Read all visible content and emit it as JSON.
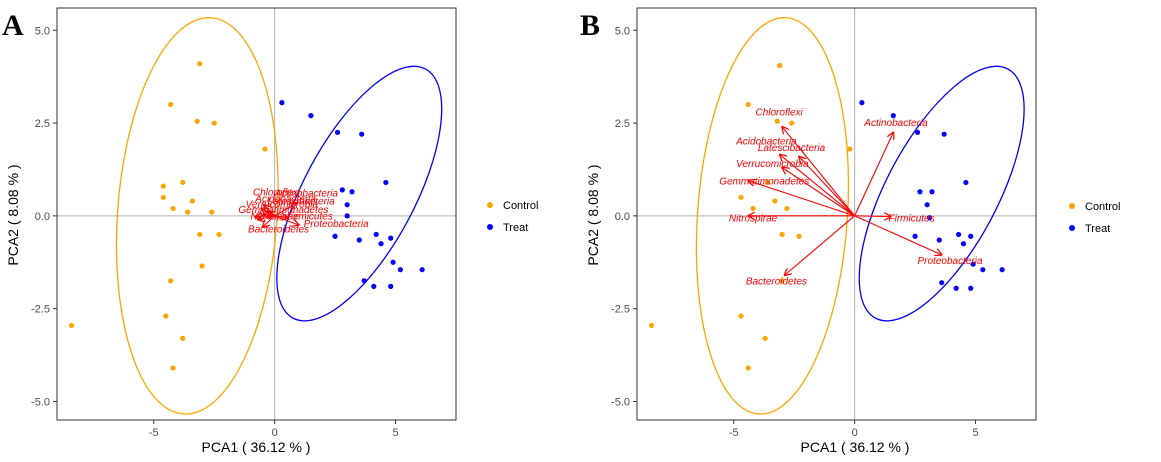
{
  "colors": {
    "control": "#FFA500",
    "treat": "#0000FF",
    "vector": "#FF0000",
    "refline": "#B3B3B3",
    "frame": "#333333"
  },
  "legend": {
    "items": [
      "Control",
      "Treat"
    ],
    "placement": "right"
  },
  "chart_data": [
    {
      "panel": "A",
      "type": "scatter",
      "xlabel": "PCA1 ( 36.12 % )",
      "ylabel": "PCA2 ( 8.08 % )",
      "xlim": [
        -9.0,
        7.5
      ],
      "ylim": [
        -5.5,
        5.6
      ],
      "xticks": [
        -5,
        0,
        5
      ],
      "xtick_labels": [
        "-5",
        "0",
        "5"
      ],
      "yticks": [
        -5,
        -2.5,
        0,
        2.5,
        5
      ],
      "ytick_labels": [
        "-5.0",
        "-2.5",
        "0.0",
        "2.5",
        "5.0"
      ],
      "series": [
        {
          "name": "Control",
          "points": [
            [
              -8.4,
              -2.95
            ],
            [
              -4.5,
              -2.7
            ],
            [
              -4.2,
              -4.1
            ],
            [
              -3.8,
              -3.3
            ],
            [
              -4.3,
              -1.75
            ],
            [
              -3.0,
              -1.35
            ],
            [
              -3.1,
              -0.5
            ],
            [
              -2.3,
              -0.5
            ],
            [
              -4.6,
              0.5
            ],
            [
              -4.2,
              0.2
            ],
            [
              -4.6,
              0.8
            ],
            [
              -3.8,
              0.9
            ],
            [
              -3.4,
              0.4
            ],
            [
              -3.6,
              0.1
            ],
            [
              -2.6,
              0.1
            ],
            [
              -4.3,
              3.0
            ],
            [
              -3.2,
              2.55
            ],
            [
              -2.5,
              2.5
            ],
            [
              -3.1,
              4.1
            ],
            [
              -0.4,
              1.8
            ]
          ]
        },
        {
          "name": "Treat",
          "points": [
            [
              0.3,
              3.05
            ],
            [
              1.5,
              2.7
            ],
            [
              2.6,
              2.25
            ],
            [
              3.6,
              2.2
            ],
            [
              4.6,
              0.9
            ],
            [
              2.8,
              0.7
            ],
            [
              3.2,
              0.65
            ],
            [
              3.0,
              0.3
            ],
            [
              3.0,
              0.0
            ],
            [
              2.5,
              -0.55
            ],
            [
              3.5,
              -0.65
            ],
            [
              4.2,
              -0.5
            ],
            [
              4.4,
              -0.75
            ],
            [
              4.8,
              -0.6
            ],
            [
              4.9,
              -1.25
            ],
            [
              5.2,
              -1.45
            ],
            [
              6.1,
              -1.45
            ],
            [
              3.7,
              -1.75
            ],
            [
              4.1,
              -1.9
            ],
            [
              4.8,
              -1.9
            ]
          ]
        }
      ],
      "ellipses": [
        {
          "name": "Control",
          "center": [
            -3.2,
            0.0
          ],
          "semi_x": 3.3,
          "semi_y": 5.35,
          "angle_deg": 4
        },
        {
          "name": "Treat",
          "center": [
            3.5,
            0.6
          ],
          "semi_x": 2.3,
          "semi_y": 3.8,
          "angle_deg": 28
        }
      ],
      "vectors": [
        {
          "label": "Chloroflexi",
          "end": [
            -0.45,
            0.3
          ]
        },
        {
          "label": "Actinobacteria",
          "end": [
            0.9,
            0.35
          ]
        },
        {
          "label": "Acidobacteria",
          "end": [
            -0.55,
            0.2
          ]
        },
        {
          "label": "Latescibacteria",
          "end": [
            -0.3,
            0.12
          ]
        },
        {
          "label": "Verrucomicrobia",
          "end": [
            -0.45,
            0.05
          ]
        },
        {
          "label": "Gemmatimonadetes",
          "end": [
            -0.7,
            -0.1
          ]
        },
        {
          "label": "Nitrospirae",
          "end": [
            -0.8,
            -0.02
          ]
        },
        {
          "label": "Firmicutes",
          "end": [
            0.55,
            -0.05
          ]
        },
        {
          "label": "Proteobacteria",
          "end": [
            1.0,
            -0.25
          ]
        },
        {
          "label": "Bacteroidetes",
          "end": [
            -0.5,
            -0.3
          ]
        }
      ],
      "vector_labels": [
        {
          "text": "Chloroflexi",
          "at": [
            -0.9,
            0.55
          ]
        },
        {
          "text": "Actinobacteria",
          "at": [
            0.0,
            0.52
          ]
        },
        {
          "text": "Acidobacteria",
          "at": [
            -0.8,
            0.38
          ]
        },
        {
          "text": "Latescibacteria",
          "at": [
            -0.3,
            0.3
          ]
        },
        {
          "text": "Verrucomicrobia",
          "at": [
            -1.2,
            0.22
          ]
        },
        {
          "text": "Gemmatimonadetes",
          "at": [
            -1.5,
            0.08
          ]
        },
        {
          "text": "Nitrospirae",
          "at": [
            -1.0,
            -0.1
          ]
        },
        {
          "text": "Firmicutes",
          "at": [
            0.5,
            -0.1
          ]
        },
        {
          "text": "Proteobacteria",
          "at": [
            1.2,
            -0.3
          ]
        },
        {
          "text": "Bacteroidetes",
          "at": [
            -1.1,
            -0.45
          ]
        }
      ]
    },
    {
      "panel": "B",
      "type": "scatter",
      "xlabel": "PCA1 ( 36.12 % )",
      "ylabel": "PCA2 ( 8.08 % )",
      "xlim": [
        -9.0,
        7.5
      ],
      "ylim": [
        -5.5,
        5.6
      ],
      "xticks": [
        -5,
        0,
        5
      ],
      "xtick_labels": [
        "-5",
        "0",
        "5"
      ],
      "yticks": [
        -5,
        -2.5,
        0,
        2.5,
        5
      ],
      "ytick_labels": [
        "-5.0",
        "-2.5",
        "0.0",
        "2.5",
        "5.0"
      ],
      "series": [
        {
          "name": "Control",
          "points": [
            [
              -8.4,
              -2.95
            ],
            [
              -4.7,
              -2.7
            ],
            [
              -4.4,
              -4.1
            ],
            [
              -3.7,
              -3.3
            ],
            [
              -3.0,
              -1.75
            ],
            [
              -2.3,
              -0.55
            ],
            [
              -3.0,
              -0.5
            ],
            [
              -4.7,
              0.5
            ],
            [
              -4.2,
              0.2
            ],
            [
              -3.6,
              0.9
            ],
            [
              -3.3,
              0.4
            ],
            [
              -2.8,
              0.2
            ],
            [
              -4.4,
              3.0
            ],
            [
              -3.2,
              2.55
            ],
            [
              -2.6,
              2.5
            ],
            [
              -3.1,
              4.05
            ],
            [
              -0.2,
              1.8
            ]
          ]
        },
        {
          "name": "Treat",
          "points": [
            [
              0.3,
              3.05
            ],
            [
              1.6,
              2.7
            ],
            [
              2.6,
              2.25
            ],
            [
              3.7,
              2.2
            ],
            [
              4.6,
              0.9
            ],
            [
              2.7,
              0.65
            ],
            [
              3.2,
              0.65
            ],
            [
              3.0,
              0.3
            ],
            [
              3.1,
              -0.05
            ],
            [
              2.5,
              -0.55
            ],
            [
              3.5,
              -0.65
            ],
            [
              4.3,
              -0.5
            ],
            [
              4.5,
              -0.75
            ],
            [
              4.8,
              -0.55
            ],
            [
              4.9,
              -1.3
            ],
            [
              5.3,
              -1.45
            ],
            [
              6.1,
              -1.45
            ],
            [
              3.6,
              -1.8
            ],
            [
              4.2,
              -1.95
            ],
            [
              4.8,
              -1.95
            ]
          ]
        }
      ],
      "ellipses": [
        {
          "name": "Control",
          "center": [
            -3.4,
            0.0
          ],
          "semi_x": 3.1,
          "semi_y": 5.35,
          "angle_deg": 4
        },
        {
          "name": "Treat",
          "center": [
            3.6,
            0.6
          ],
          "semi_x": 2.3,
          "semi_y": 3.8,
          "angle_deg": 28
        }
      ],
      "vectors": [
        {
          "label": "Chloroflexi",
          "end": [
            -3.0,
            2.4
          ]
        },
        {
          "label": "Actinobacteria",
          "end": [
            1.6,
            2.25
          ]
        },
        {
          "label": "Acidobacteria",
          "end": [
            -3.1,
            1.65
          ]
        },
        {
          "label": "Latescibacteria",
          "end": [
            -2.3,
            1.6
          ]
        },
        {
          "label": "Verrucomicrobia",
          "end": [
            -3.0,
            1.3
          ]
        },
        {
          "label": "Gemmatimonadetes",
          "end": [
            -4.4,
            0.95
          ]
        },
        {
          "label": "Nitrospirae",
          "end": [
            -4.4,
            0.0
          ]
        },
        {
          "label": "Firmicutes",
          "end": [
            1.5,
            -0.02
          ]
        },
        {
          "label": "Proteobacteria",
          "end": [
            3.6,
            -1.05
          ]
        },
        {
          "label": "Bacteroidetes",
          "end": [
            -2.9,
            -1.6
          ]
        }
      ],
      "vector_labels": [
        {
          "text": "Chloroflexi",
          "at": [
            -4.1,
            2.7
          ]
        },
        {
          "text": "Actinobacteria",
          "at": [
            0.4,
            2.42
          ]
        },
        {
          "text": "Acidobacteria",
          "at": [
            -4.9,
            1.92
          ]
        },
        {
          "text": "Latescibacteria",
          "at": [
            -4.0,
            1.75
          ]
        },
        {
          "text": "Verrucomicrobia",
          "at": [
            -4.9,
            1.32
          ]
        },
        {
          "text": "Gemmatimonadetes",
          "at": [
            -5.6,
            0.85
          ]
        },
        {
          "text": "Nitrospirae",
          "at": [
            -5.2,
            -0.15
          ]
        },
        {
          "text": "Firmicutes",
          "at": [
            1.4,
            -0.15
          ]
        },
        {
          "text": "Proteobacteria",
          "at": [
            2.6,
            -1.3
          ]
        },
        {
          "text": "Bacteroidetes",
          "at": [
            -4.5,
            -1.85
          ]
        }
      ]
    }
  ]
}
